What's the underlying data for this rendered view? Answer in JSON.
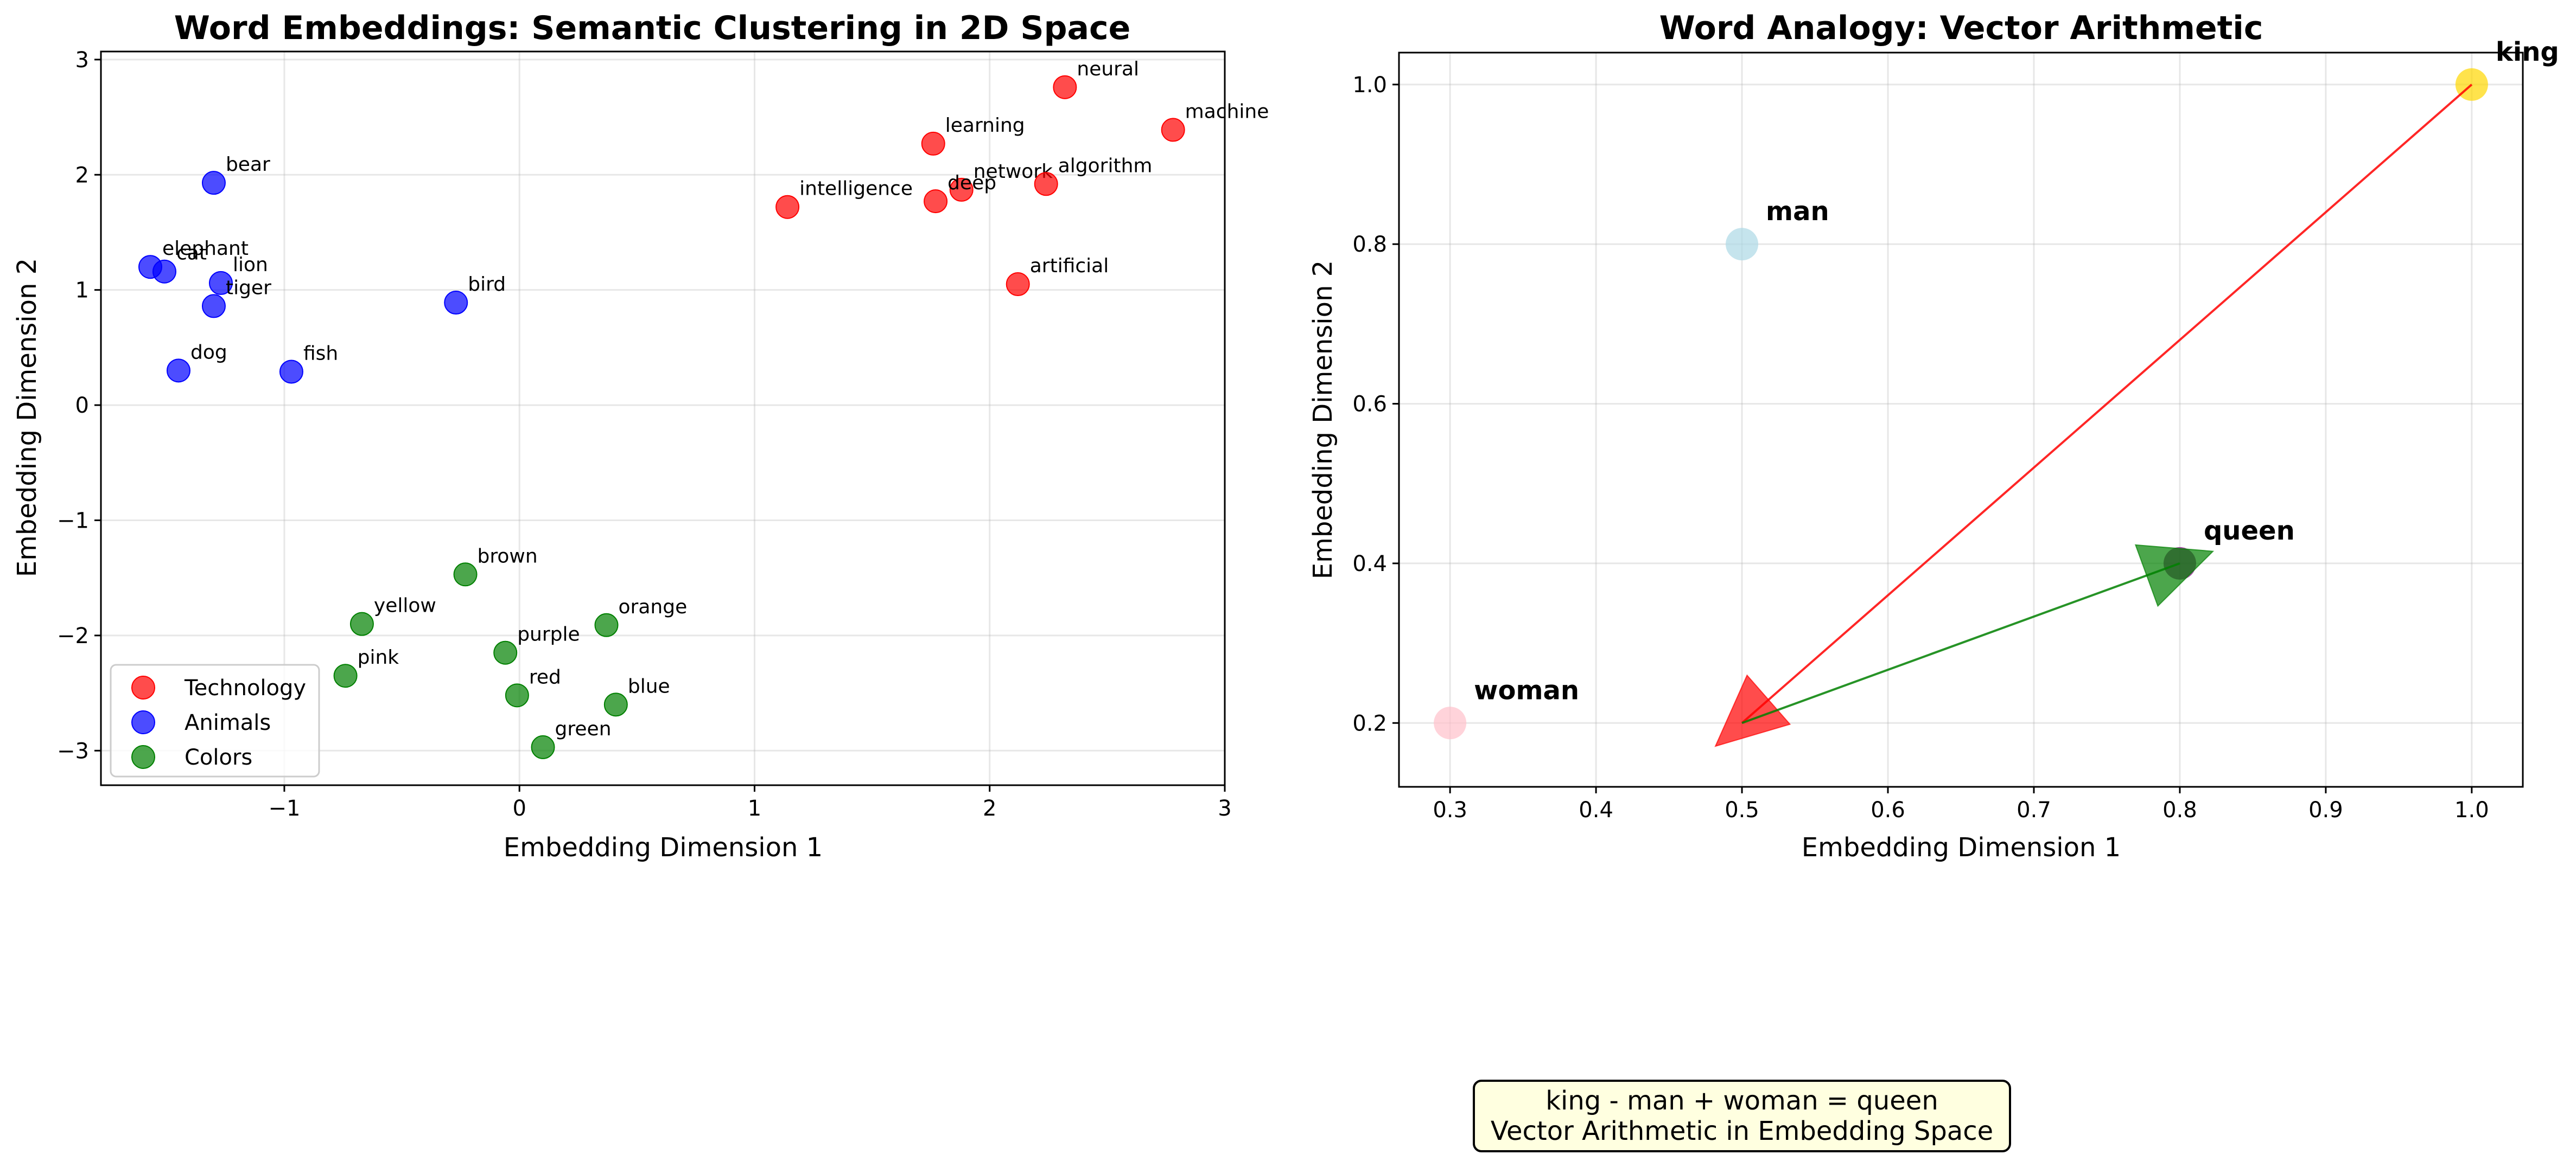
{
  "chart_data": [
    {
      "type": "scatter",
      "title": "Word Embeddings: Semantic Clustering in 2D Space",
      "xlabel": "Embedding Dimension 1",
      "ylabel": "Embedding Dimension 2",
      "xlim": [
        -1.78,
        3.0
      ],
      "ylim": [
        -3.3,
        3.07
      ],
      "xticks": [
        -1,
        0,
        1,
        2,
        3
      ],
      "yticks": [
        -3,
        -2,
        -1,
        0,
        1,
        2,
        3
      ],
      "xtick_labels": [
        "−1",
        "0",
        "1",
        "2",
        "3"
      ],
      "ytick_labels": [
        "−3",
        "−2",
        "−1",
        "0",
        "1",
        "2",
        "3"
      ],
      "grid": true,
      "legend_position": "lower-left",
      "series": [
        {
          "name": "Technology",
          "color": "#ff0000",
          "points": [
            {
              "label": "neural",
              "x": 2.32,
              "y": 2.76
            },
            {
              "label": "machine",
              "x": 2.78,
              "y": 2.39
            },
            {
              "label": "learning",
              "x": 1.76,
              "y": 2.27
            },
            {
              "label": "network",
              "x": 1.88,
              "y": 1.87
            },
            {
              "label": "algorithm",
              "x": 2.24,
              "y": 1.92
            },
            {
              "label": "intelligence",
              "x": 1.14,
              "y": 1.72
            },
            {
              "label": "deep",
              "x": 1.77,
              "y": 1.77
            },
            {
              "label": "artificial",
              "x": 2.12,
              "y": 1.05
            }
          ]
        },
        {
          "name": "Animals",
          "color": "#0000ff",
          "points": [
            {
              "label": "bear",
              "x": -1.3,
              "y": 1.93
            },
            {
              "label": "elephant",
              "x": -1.57,
              "y": 1.2
            },
            {
              "label": "cat",
              "x": -1.51,
              "y": 1.16
            },
            {
              "label": "lion",
              "x": -1.27,
              "y": 1.06
            },
            {
              "label": "tiger",
              "x": -1.3,
              "y": 0.86
            },
            {
              "label": "bird",
              "x": -0.27,
              "y": 0.89
            },
            {
              "label": "dog",
              "x": -1.45,
              "y": 0.3
            },
            {
              "label": "fish",
              "x": -0.97,
              "y": 0.29
            }
          ]
        },
        {
          "name": "Colors",
          "color": "#008000",
          "points": [
            {
              "label": "brown",
              "x": -0.23,
              "y": -1.47
            },
            {
              "label": "yellow",
              "x": -0.67,
              "y": -1.9
            },
            {
              "label": "orange",
              "x": 0.37,
              "y": -1.91
            },
            {
              "label": "purple",
              "x": -0.06,
              "y": -2.15
            },
            {
              "label": "pink",
              "x": -0.74,
              "y": -2.35
            },
            {
              "label": "red",
              "x": -0.01,
              "y": -2.52
            },
            {
              "label": "blue",
              "x": 0.41,
              "y": -2.6
            },
            {
              "label": "green",
              "x": 0.1,
              "y": -2.97
            }
          ]
        }
      ]
    },
    {
      "type": "scatter",
      "title": "Word Analogy: Vector Arithmetic",
      "xlabel": "Embedding Dimension 1",
      "ylabel": "Embedding Dimension 2",
      "xlim": [
        0.265,
        1.035
      ],
      "ylim": [
        0.12,
        1.04
      ],
      "xticks": [
        0.3,
        0.4,
        0.5,
        0.6,
        0.7,
        0.8,
        0.9,
        1.0
      ],
      "yticks": [
        0.2,
        0.4,
        0.6,
        0.8,
        1.0
      ],
      "xtick_labels": [
        "0.3",
        "0.4",
        "0.5",
        "0.6",
        "0.7",
        "0.8",
        "0.9",
        "1.0"
      ],
      "ytick_labels": [
        "0.2",
        "0.4",
        "0.6",
        "0.8",
        "1.0"
      ],
      "grid": true,
      "points": [
        {
          "label": "king",
          "x": 1.0,
          "y": 1.0,
          "color": "#ffd700"
        },
        {
          "label": "man",
          "x": 0.5,
          "y": 0.8,
          "color": "#add8e6"
        },
        {
          "label": "woman",
          "x": 0.3,
          "y": 0.2,
          "color": "#ffc0cb"
        },
        {
          "label": "queen",
          "x": 0.8,
          "y": 0.4,
          "color": "#800080"
        }
      ],
      "arrows": [
        {
          "from": [
            1.0,
            1.0
          ],
          "to": [
            0.5,
            0.2
          ],
          "color": "#ff0000"
        },
        {
          "from": [
            0.5,
            0.2
          ],
          "to": [
            0.8,
            0.4
          ],
          "color": "#008000"
        }
      ]
    }
  ],
  "caption": {
    "line1": "king - man + woman = queen",
    "line2": "Vector Arithmetic in Embedding Space",
    "background": "#ffffe0"
  }
}
